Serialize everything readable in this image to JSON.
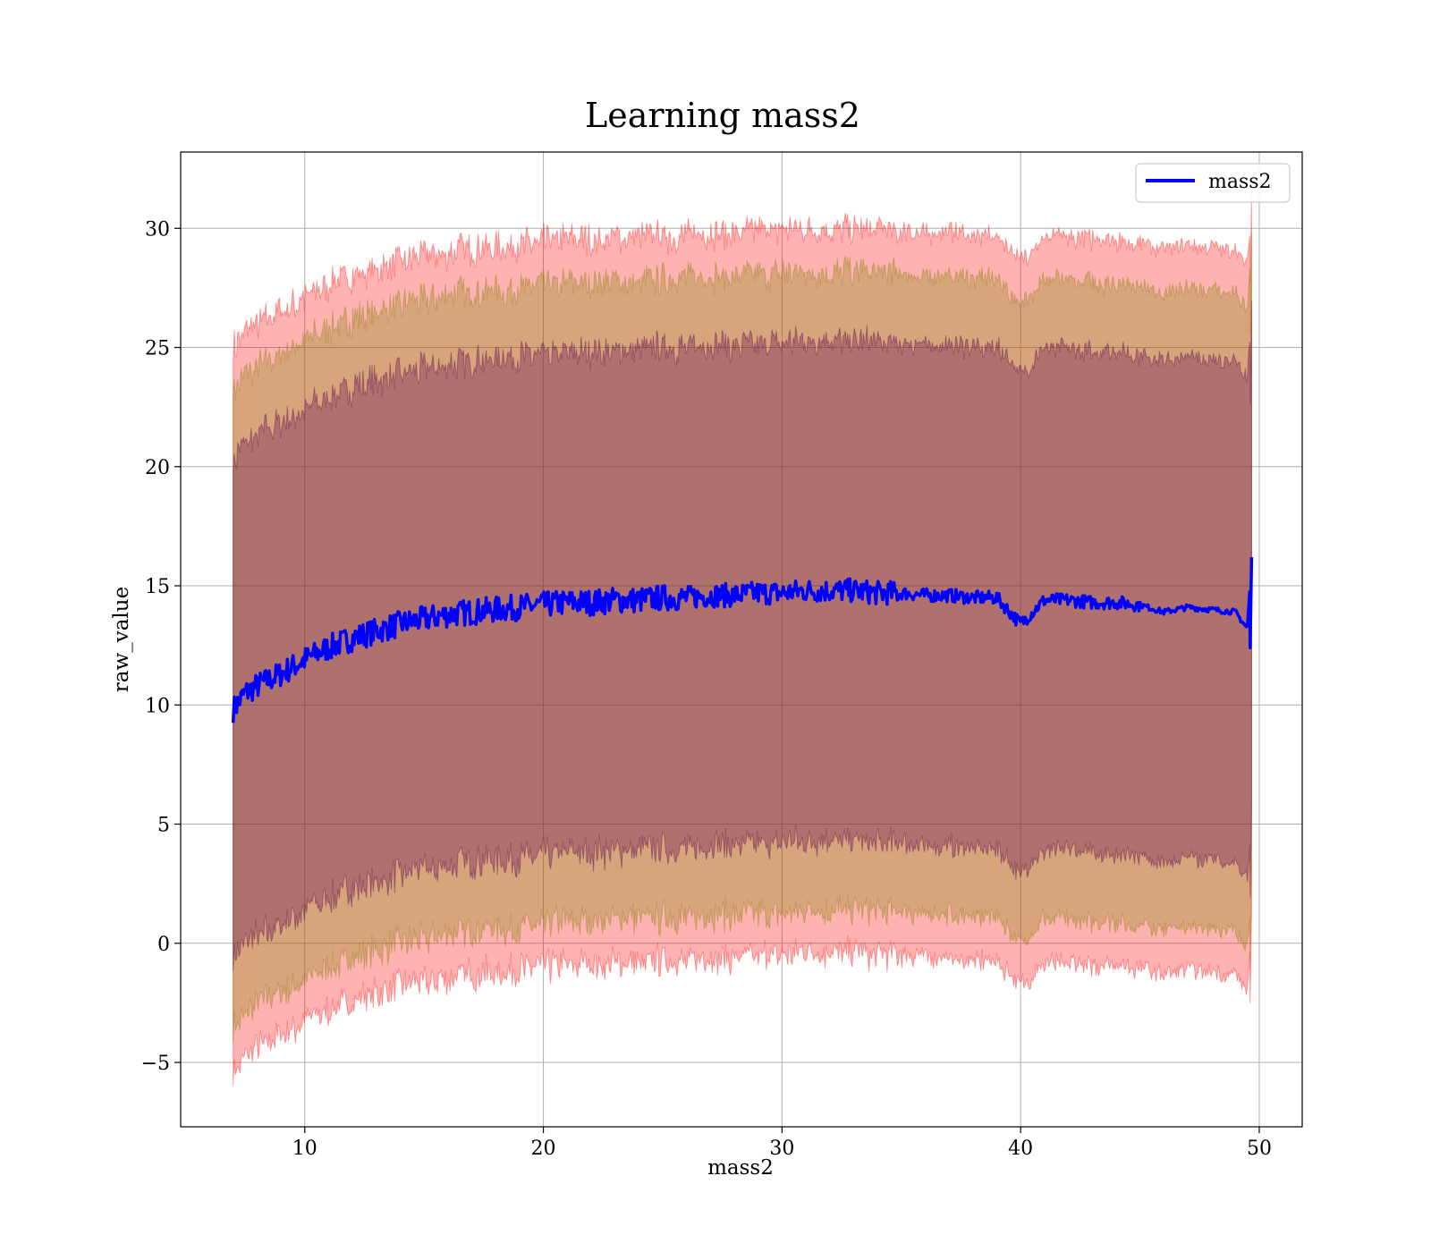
{
  "chart_data": {
    "type": "line",
    "title": "Learning mass2",
    "xlabel": "mass2",
    "ylabel": "raw_value",
    "xlim": [
      4.8,
      51.8
    ],
    "ylim": [
      -7.7,
      33.2
    ],
    "xticks": [
      10,
      20,
      30,
      40,
      50
    ],
    "yticks": [
      -5,
      0,
      5,
      10,
      15,
      20,
      25,
      30
    ],
    "ytick_labels": [
      "−5",
      "0",
      "5",
      "10",
      "15",
      "20",
      "25",
      "30"
    ],
    "grid": true,
    "legend_position": "top-right",
    "series": [
      {
        "name": "mass2",
        "color": "#0000ff",
        "x": [
          7.0,
          7.5,
          8,
          9,
          10,
          11,
          12,
          13,
          14,
          15,
          16,
          17,
          18,
          19,
          20,
          21,
          22,
          23,
          24,
          25,
          26,
          27,
          28,
          29,
          30,
          31,
          32,
          33,
          34,
          35,
          36,
          37,
          38,
          39,
          40,
          41,
          42,
          43,
          44,
          45,
          46,
          47,
          48,
          49,
          49.5,
          49.7
        ],
        "values": [
          9.8,
          10.5,
          10.8,
          11.3,
          11.9,
          12.4,
          12.8,
          13.1,
          13.4,
          13.6,
          13.8,
          13.9,
          14.0,
          14.1,
          14.2,
          14.3,
          14.3,
          14.4,
          14.4,
          14.5,
          14.5,
          14.6,
          14.6,
          14.7,
          14.7,
          14.8,
          14.8,
          14.8,
          14.7,
          14.7,
          14.6,
          14.6,
          14.5,
          14.5,
          13.4,
          14.4,
          14.4,
          14.3,
          14.3,
          14.2,
          13.9,
          14.1,
          14.0,
          13.9,
          13.2,
          16.2
        ]
      }
    ],
    "bands": [
      {
        "name": "",
        "color": "#ff0000",
        "opacity": 0.3,
        "half_width": 15.2
      },
      {
        "name": "",
        "color": "#808000",
        "opacity": 0.3,
        "half_width": 13.4
      },
      {
        "name": "",
        "color": "#4b004b",
        "opacity": 0.3,
        "half_width": 10.5
      }
    ],
    "noise_seed": 7
  }
}
